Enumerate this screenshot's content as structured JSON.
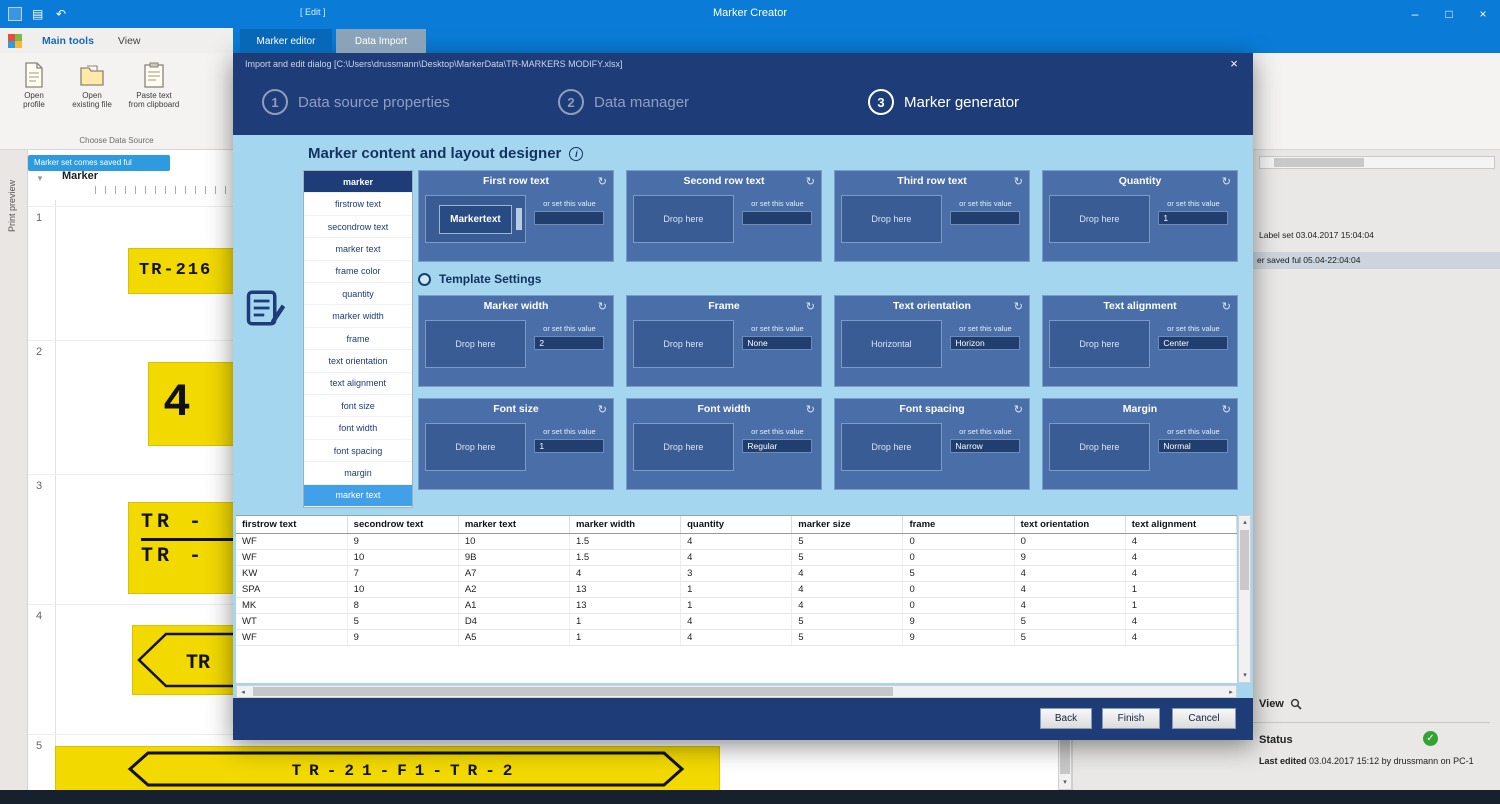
{
  "icons": {
    "min": "–",
    "max": "□",
    "close": "×",
    "refresh": "↻",
    "check": "✓",
    "up": "▴",
    "down": "▾",
    "left": "◂",
    "right": "▸",
    "filter": "▼",
    "info": "i",
    "save": "▤",
    "undo": "↶",
    "dots": "⋯"
  },
  "titlebar": {
    "title": "Marker Creator",
    "doc_label": "[ Edit ]"
  },
  "ribbon": {
    "tabs": [
      "Main tools",
      "View"
    ],
    "buttons": [
      {
        "label": "Open\nprofile"
      },
      {
        "label": "Open\nexisting file"
      },
      {
        "label": "Paste text\nfrom clipboard"
      }
    ],
    "group_label": "Choose Data Source",
    "info_pill": "Marker set comes saved ful"
  },
  "preview": {
    "tab_label": "Print preview",
    "column_header": "Marker",
    "rows": [
      {
        "num": "1",
        "text": "TR-216"
      },
      {
        "num": "2",
        "text": "4"
      },
      {
        "num": "3",
        "line1": "TR -",
        "line2": "TR -"
      },
      {
        "num": "4",
        "text": "TR"
      },
      {
        "num": "5",
        "text": "TR-21-F1-TR-2"
      }
    ]
  },
  "dialog": {
    "tabs": [
      "Marker editor",
      "Data Import"
    ],
    "path_title": "Import and edit dialog [C:\\Users\\drussmann\\Desktop\\MarkerData\\TR-MARKERS MODIFY.xlsx]",
    "steps": [
      {
        "num": "1",
        "label": "Data source properties"
      },
      {
        "num": "2",
        "label": "Data manager"
      },
      {
        "num": "3",
        "label": "Marker generator"
      }
    ],
    "designer": {
      "heading": "Marker content and layout designer",
      "or_label": "or set this value",
      "drop_label": "Drop here",
      "template_settings_label": "Template Settings",
      "fields": [
        {
          "label": "marker",
          "style": "header"
        },
        {
          "label": "firstrow text"
        },
        {
          "label": "secondrow text"
        },
        {
          "label": "marker text"
        },
        {
          "label": "frame color"
        },
        {
          "label": "quantity"
        },
        {
          "label": "marker width"
        },
        {
          "label": "frame"
        },
        {
          "label": "text orientation"
        },
        {
          "label": "text alignment"
        },
        {
          "label": "font size"
        },
        {
          "label": "font width"
        },
        {
          "label": "font spacing"
        },
        {
          "label": "margin"
        },
        {
          "label": "marker text",
          "style": "selected"
        }
      ],
      "cards": [
        {
          "title": "First row text",
          "chip": "Markertext",
          "value": ""
        },
        {
          "title": "Second row text",
          "value": ""
        },
        {
          "title": "Third row text",
          "value": ""
        },
        {
          "title": "Quantity",
          "value": "1"
        },
        {
          "title": "Marker width",
          "value": "2"
        },
        {
          "title": "Frame",
          "value": "None"
        },
        {
          "title": "Text orientation",
          "drop": "Horizontal",
          "value": "Horizon"
        },
        {
          "title": "Text alignment",
          "value": "Center"
        },
        {
          "title": "Font size",
          "value": "1"
        },
        {
          "title": "Font width",
          "value": "Regular"
        },
        {
          "title": "Font spacing",
          "value": "Narrow"
        },
        {
          "title": "Margin",
          "value": "Normal"
        }
      ]
    },
    "table": {
      "columns": [
        "firstrow text",
        "secondrow text",
        "marker text",
        "marker width",
        "quantity",
        "marker size",
        "frame",
        "text orientation",
        "text alignment"
      ],
      "rows": [
        [
          "WF",
          "9",
          "10",
          "1.5",
          "4",
          "5",
          "0",
          "0",
          "4"
        ],
        [
          "WF",
          "10",
          "9B",
          "1.5",
          "4",
          "5",
          "0",
          "9",
          "4"
        ],
        [
          "KW",
          "7",
          "A7",
          "4",
          "3",
          "4",
          "5",
          "4",
          "4"
        ],
        [
          "SPA",
          "10",
          "A2",
          "13",
          "1",
          "4",
          "0",
          "4",
          "1"
        ],
        [
          "MK",
          "8",
          "A1",
          "13",
          "1",
          "4",
          "0",
          "4",
          "1"
        ],
        [
          "WT",
          "5",
          "D4",
          "1",
          "4",
          "5",
          "9",
          "5",
          "4"
        ],
        [
          "WF",
          "9",
          "A5",
          "1",
          "4",
          "5",
          "9",
          "5",
          "4"
        ]
      ]
    },
    "footer": {
      "back": "Back",
      "finish": "Finish",
      "cancel": "Cancel"
    }
  },
  "right_panel": {
    "line1": "Label set 03.04.2017 15:04:04",
    "line2": "er saved ful 05.04-22:04:04",
    "view_label": "View",
    "status_label": "Status",
    "last_edited_label": "Last edited",
    "last_edited_value": "03.04.2017 15:12 by drussmann on PC-1"
  }
}
